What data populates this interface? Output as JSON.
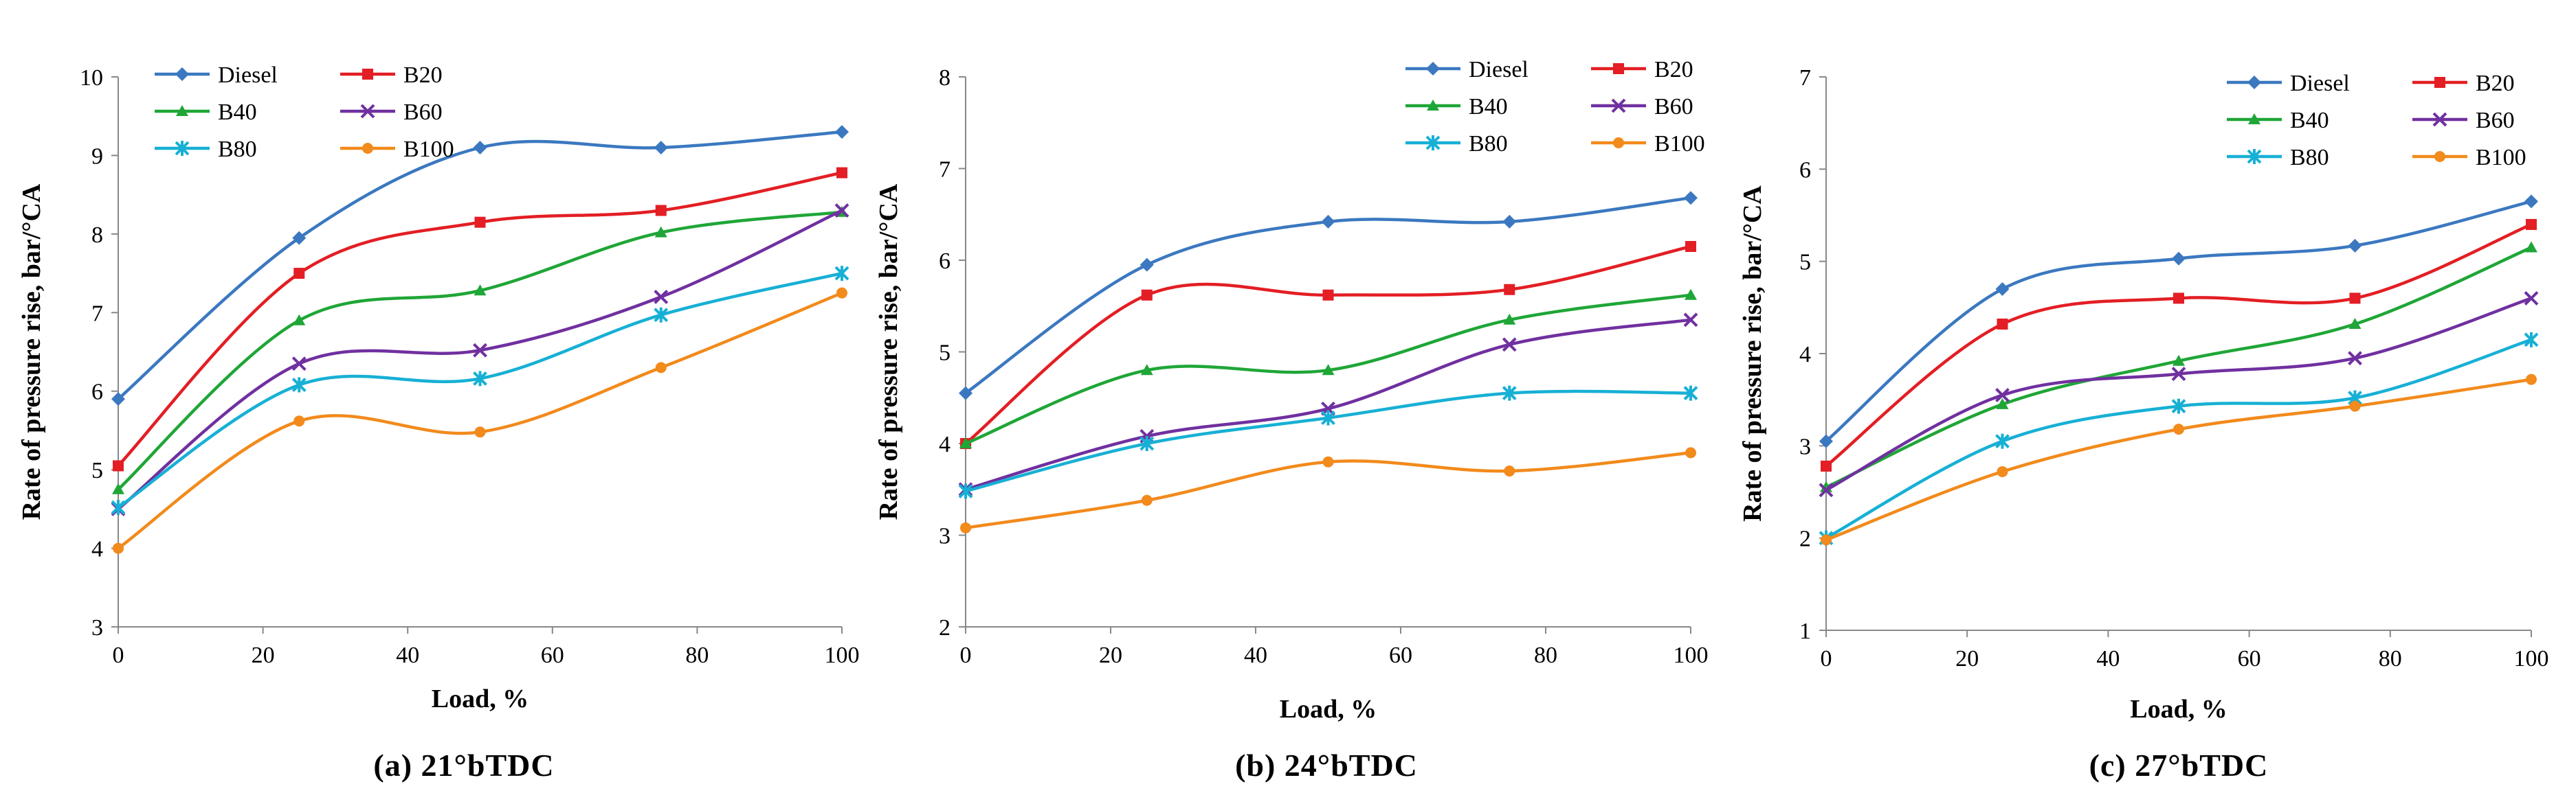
{
  "chart_data": [
    {
      "type": "line",
      "caption": "(a) 21°bTDC",
      "xlabel": "Load, %",
      "ylabel": "Rate of pressure rise, bar/°CA",
      "x": [
        0,
        25,
        50,
        75,
        100
      ],
      "xlim": [
        0,
        100
      ],
      "ylim": [
        3,
        10
      ],
      "x_ticks": [
        "0",
        "20",
        "40",
        "60",
        "80",
        "100"
      ],
      "y_ticks": [
        "3",
        "4",
        "5",
        "6",
        "7",
        "8",
        "9",
        "10"
      ],
      "legend_position": "top-left",
      "series": [
        {
          "name": "Diesel",
          "color": "#3B78C0",
          "marker": "diamond",
          "values": [
            5.9,
            7.95,
            9.1,
            9.1,
            9.3
          ]
        },
        {
          "name": "B20",
          "color": "#E31E24",
          "marker": "square",
          "values": [
            5.05,
            7.5,
            8.15,
            8.3,
            8.78
          ]
        },
        {
          "name": "B40",
          "color": "#1FA637",
          "marker": "triangle",
          "values": [
            4.75,
            6.9,
            7.28,
            8.02,
            8.28
          ]
        },
        {
          "name": "B60",
          "color": "#7030A0",
          "marker": "x",
          "values": [
            4.5,
            6.35,
            6.52,
            7.2,
            8.3
          ]
        },
        {
          "name": "B80",
          "color": "#17B0D5",
          "marker": "star",
          "values": [
            4.52,
            6.08,
            6.16,
            6.97,
            7.5
          ]
        },
        {
          "name": "B100",
          "color": "#F28A1C",
          "marker": "circle",
          "values": [
            4.0,
            5.62,
            5.48,
            6.3,
            7.25
          ]
        }
      ]
    },
    {
      "type": "line",
      "caption": "(b) 24°bTDC",
      "xlabel": "Load, %",
      "ylabel": "Rate of pressure rise, bar/°CA",
      "x": [
        0,
        25,
        50,
        75,
        100
      ],
      "xlim": [
        0,
        100
      ],
      "ylim": [
        2,
        8
      ],
      "x_ticks": [
        "0",
        "20",
        "40",
        "60",
        "80",
        "100"
      ],
      "y_ticks": [
        "2",
        "3",
        "4",
        "5",
        "6",
        "7",
        "8"
      ],
      "legend_position": "top-right",
      "series": [
        {
          "name": "Diesel",
          "color": "#3B78C0",
          "marker": "diamond",
          "values": [
            4.55,
            5.95,
            6.42,
            6.42,
            6.68
          ]
        },
        {
          "name": "B20",
          "color": "#E31E24",
          "marker": "square",
          "values": [
            4.0,
            5.62,
            5.62,
            5.68,
            6.15
          ]
        },
        {
          "name": "B40",
          "color": "#1FA637",
          "marker": "triangle",
          "values": [
            4.0,
            4.8,
            4.8,
            5.35,
            5.62
          ]
        },
        {
          "name": "B60",
          "color": "#7030A0",
          "marker": "x",
          "values": [
            3.5,
            4.08,
            4.38,
            5.08,
            5.35
          ]
        },
        {
          "name": "B80",
          "color": "#17B0D5",
          "marker": "star",
          "values": [
            3.48,
            4.0,
            4.28,
            4.55,
            4.55
          ]
        },
        {
          "name": "B100",
          "color": "#F28A1C",
          "marker": "circle",
          "values": [
            3.08,
            3.38,
            3.8,
            3.7,
            3.9
          ]
        }
      ]
    },
    {
      "type": "line",
      "caption": "(c) 27°bTDC",
      "xlabel": "Load, %",
      "ylabel": "Rate of pressure rise, bar/°CA",
      "x": [
        0,
        25,
        50,
        75,
        100
      ],
      "xlim": [
        0,
        100
      ],
      "ylim": [
        1,
        7
      ],
      "x_ticks": [
        "0",
        "20",
        "40",
        "60",
        "80",
        "100"
      ],
      "y_ticks": [
        "1",
        "2",
        "3",
        "4",
        "5",
        "6",
        "7"
      ],
      "legend_position": "top-right",
      "series": [
        {
          "name": "Diesel",
          "color": "#3B78C0",
          "marker": "diamond",
          "values": [
            3.05,
            4.7,
            5.03,
            5.17,
            5.65
          ]
        },
        {
          "name": "B20",
          "color": "#E31E24",
          "marker": "square",
          "values": [
            2.78,
            4.32,
            4.6,
            4.6,
            5.4
          ]
        },
        {
          "name": "B40",
          "color": "#1FA637",
          "marker": "triangle",
          "values": [
            2.55,
            3.45,
            3.92,
            4.32,
            5.15
          ]
        },
        {
          "name": "B60",
          "color": "#7030A0",
          "marker": "x",
          "values": [
            2.52,
            3.55,
            3.78,
            3.95,
            4.6
          ]
        },
        {
          "name": "B80",
          "color": "#17B0D5",
          "marker": "star",
          "values": [
            2.0,
            3.05,
            3.43,
            3.52,
            4.15
          ]
        },
        {
          "name": "B100",
          "color": "#F28A1C",
          "marker": "circle",
          "values": [
            1.98,
            2.72,
            3.18,
            3.43,
            3.72
          ]
        }
      ]
    }
  ]
}
